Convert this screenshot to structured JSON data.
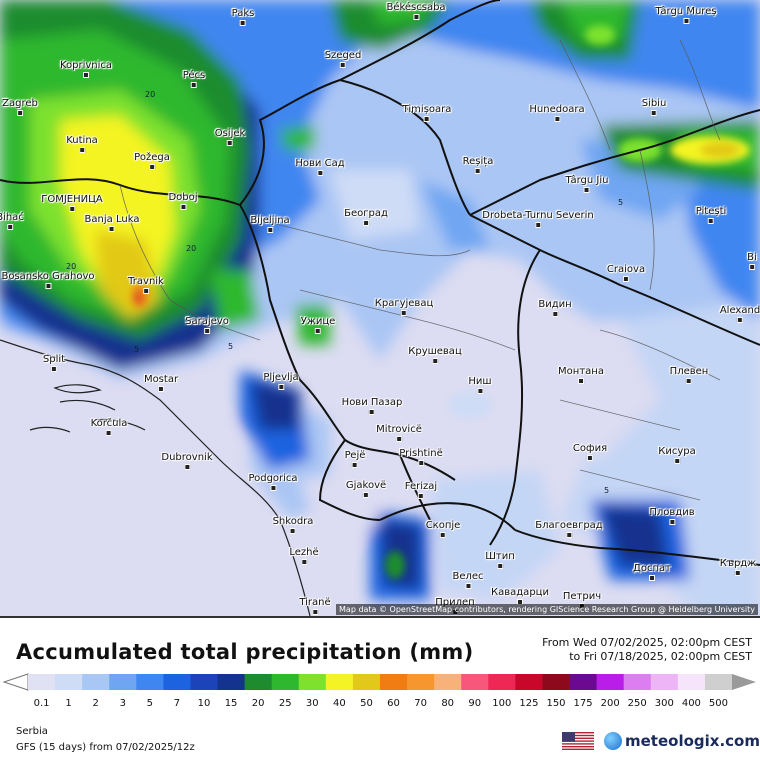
{
  "map": {
    "attribution": "Map data © OpenStreetMap contributors, rendering GIScience Research Group @ Heidelberg University",
    "cities": [
      {
        "name": "Paks"
      },
      {
        "name": "Békéscsaba"
      },
      {
        "name": "Târgu Mureș"
      },
      {
        "name": "Koprivnica"
      },
      {
        "name": "Pécs"
      },
      {
        "name": "Szeged"
      },
      {
        "name": "Zagreb"
      },
      {
        "name": "Kutina"
      },
      {
        "name": "Osijek"
      },
      {
        "name": "Timișoara"
      },
      {
        "name": "Hunedoara"
      },
      {
        "name": "Sibiu"
      },
      {
        "name": "Požega"
      },
      {
        "name": "Нови Сад"
      },
      {
        "name": "Reșița"
      },
      {
        "name": "ГОМЈЕНИЦА"
      },
      {
        "name": "Banja Luka"
      },
      {
        "name": "Doboj"
      },
      {
        "name": "Bijeljina"
      },
      {
        "name": "Београд"
      },
      {
        "name": "Târgu Jiu"
      },
      {
        "name": "Pitești"
      },
      {
        "name": "Drobeta-Turnu Severin"
      },
      {
        "name": "Bosansko Grahovo"
      },
      {
        "name": "Travnik"
      },
      {
        "name": "Craiova"
      },
      {
        "name": "Sarajevo"
      },
      {
        "name": "Ужице"
      },
      {
        "name": "Крагујевац"
      },
      {
        "name": "Видин"
      },
      {
        "name": "Alexand"
      },
      {
        "name": "Split"
      },
      {
        "name": "Крушевац"
      },
      {
        "name": "Mostar"
      },
      {
        "name": "Pljevlja"
      },
      {
        "name": "Ниш"
      },
      {
        "name": "Монтана"
      },
      {
        "name": "Плевен"
      },
      {
        "name": "Нови Пазар"
      },
      {
        "name": "Korčula"
      },
      {
        "name": "Mitrovicë"
      },
      {
        "name": "София"
      },
      {
        "name": "Dubrovnik"
      },
      {
        "name": "Pejë"
      },
      {
        "name": "Prishtinë"
      },
      {
        "name": "Кисура"
      },
      {
        "name": "Podgorica"
      },
      {
        "name": "Gjakovë"
      },
      {
        "name": "Ferizaj"
      },
      {
        "name": "Shkodra"
      },
      {
        "name": "Скопје"
      },
      {
        "name": "Благоевград"
      },
      {
        "name": "Пловдив"
      },
      {
        "name": "Lezhë"
      },
      {
        "name": "Штип"
      },
      {
        "name": "Велес"
      },
      {
        "name": "Доспат"
      },
      {
        "name": "Кърдж"
      },
      {
        "name": "Кавадарци"
      },
      {
        "name": "Tiranë"
      },
      {
        "name": "Прилеп"
      },
      {
        "name": "Петрич"
      },
      {
        "name": "Bihać"
      },
      {
        "name": "Bi"
      }
    ],
    "contour_labels": [
      "20",
      "20",
      "20",
      "5",
      "5",
      "5",
      "5"
    ]
  },
  "legend": {
    "title": "Accumulated total precipitation (mm)",
    "from": "From Wed 07/02/2025, 02:00pm CEST",
    "to": "to Fri 07/18/2025, 02:00pm CEST",
    "bins": [
      {
        "label": "0.1",
        "color": "#e1e1f4"
      },
      {
        "label": "1",
        "color": "#cfdcf6"
      },
      {
        "label": "2",
        "color": "#a9c7f5"
      },
      {
        "label": "3",
        "color": "#6fa6f2"
      },
      {
        "label": "5",
        "color": "#3f86f0"
      },
      {
        "label": "7",
        "color": "#1d63e0"
      },
      {
        "label": "10",
        "color": "#1a44b8"
      },
      {
        "label": "15",
        "color": "#13338e"
      },
      {
        "label": "20",
        "color": "#1e8c2e"
      },
      {
        "label": "25",
        "color": "#2fb82f"
      },
      {
        "label": "30",
        "color": "#7de12d"
      },
      {
        "label": "40",
        "color": "#f4f424"
      },
      {
        "label": "50",
        "color": "#e2c919"
      },
      {
        "label": "60",
        "color": "#f07d14"
      },
      {
        "label": "70",
        "color": "#f5962e"
      },
      {
        "label": "80",
        "color": "#f8b178"
      },
      {
        "label": "90",
        "color": "#f6577a"
      },
      {
        "label": "100",
        "color": "#ee2754"
      },
      {
        "label": "125",
        "color": "#c8072a"
      },
      {
        "label": "150",
        "color": "#8d0a1c"
      },
      {
        "label": "175",
        "color": "#6b0a90"
      },
      {
        "label": "200",
        "color": "#b81ee8"
      },
      {
        "label": "250",
        "color": "#dc7df2"
      },
      {
        "label": "300",
        "color": "#edb5f6"
      },
      {
        "label": "400",
        "color": "#f6e5fa"
      },
      {
        "label": "500",
        "color": "#cfcfcf"
      }
    ],
    "region": "Serbia",
    "model": "GFS (15 days) from 07/02/2025/12z"
  },
  "brand": {
    "name": "meteologix.com",
    "flag_icon": "us-flag-icon",
    "logo_icon": "meteologix-logo-icon"
  }
}
